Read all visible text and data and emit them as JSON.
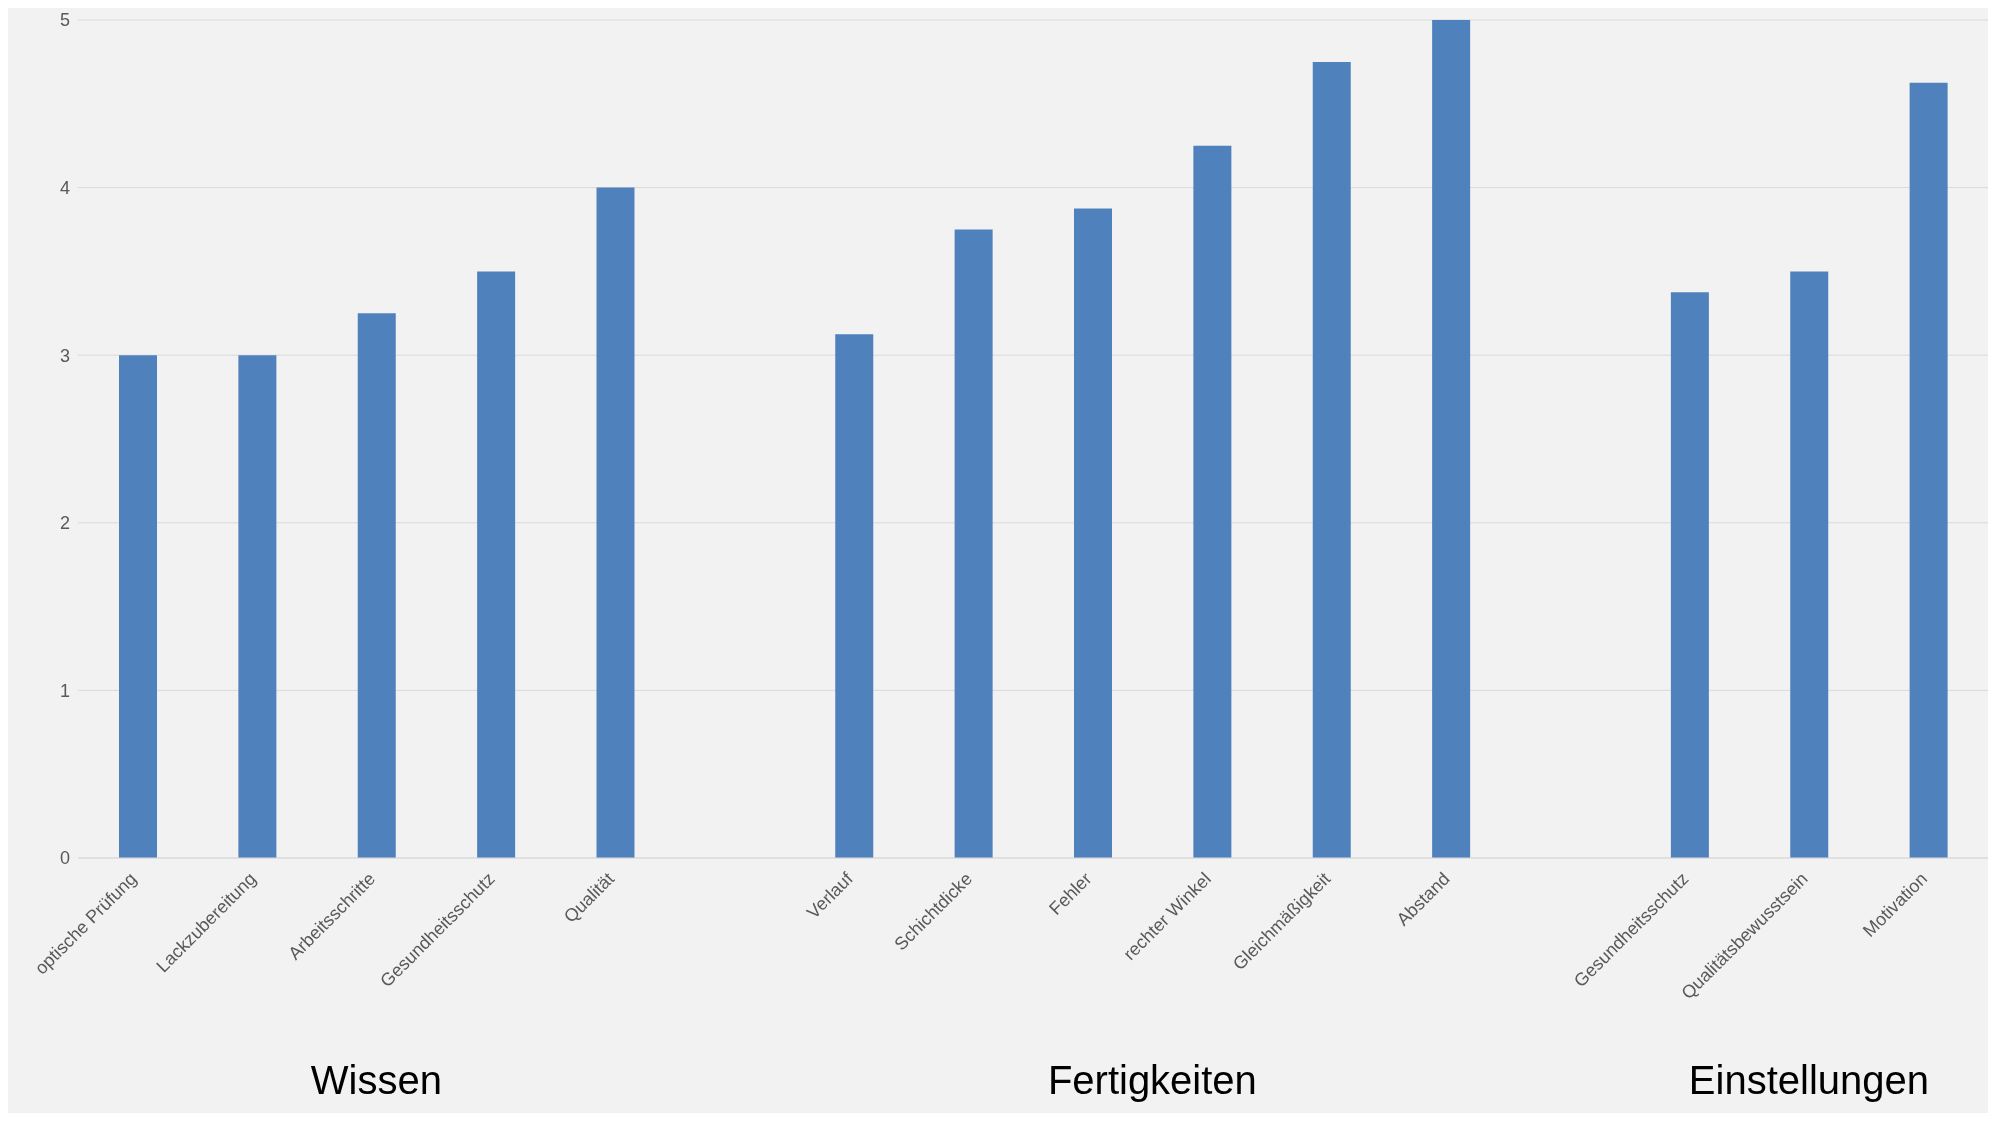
{
  "chart_data": {
    "type": "bar",
    "categories": [
      "optische Prüfung",
      "Lackzubereitung",
      "Arbeitsschritte",
      "Gesundheitsschutz",
      "Qualität",
      null,
      "Verlauf",
      "Schichtdicke",
      "Fehler",
      "rechter Winkel",
      "Gleichmäßigkeit",
      "Abstand",
      null,
      "Gesundheitsschutz",
      "Qualitätsbewusstsein",
      "Motivation"
    ],
    "values": [
      3,
      3,
      3.25,
      3.5,
      4,
      null,
      3.125,
      3.75,
      3.875,
      4.25,
      4.75,
      5,
      null,
      3.375,
      3.5,
      4.625
    ],
    "color": "#4f81bd",
    "ylim": [
      0,
      5
    ],
    "yticks": [
      0,
      1,
      2,
      3,
      4,
      5
    ],
    "grid": "y",
    "annotations": [
      "Wissen",
      "Fertigkeiten",
      "Einstellungen"
    ]
  }
}
